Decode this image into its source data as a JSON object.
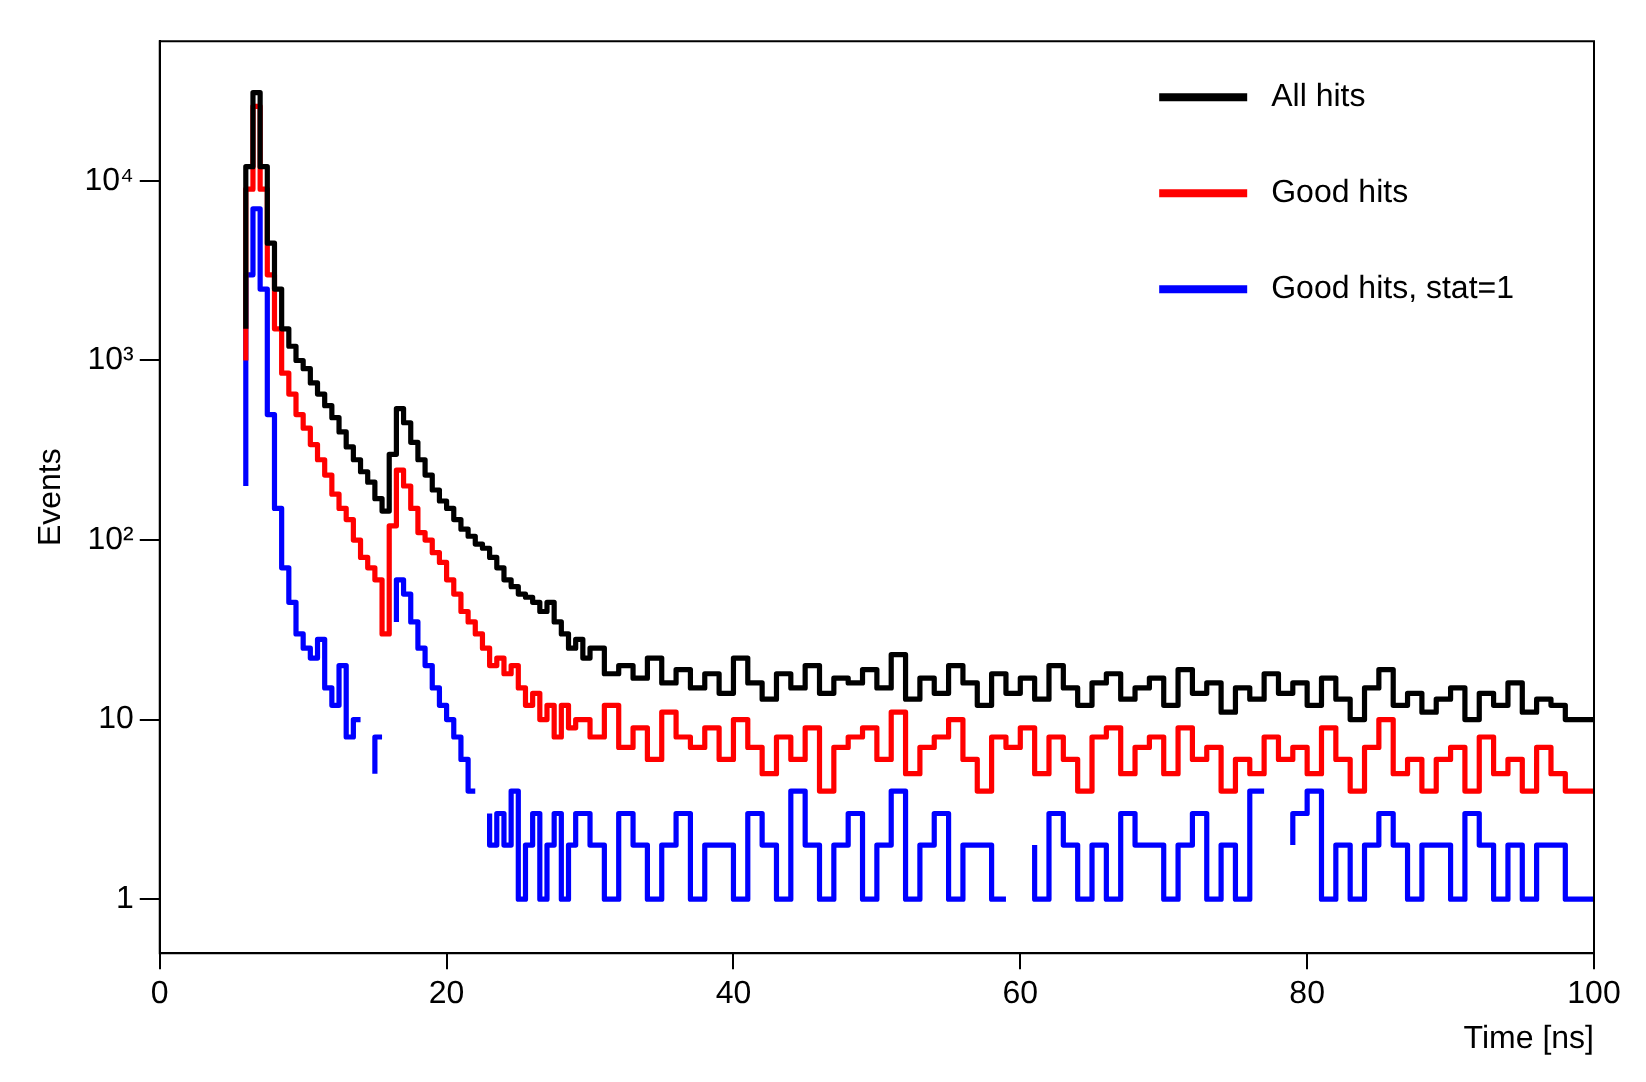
{
  "chart_data": {
    "type": "step",
    "xlabel": "Time [ns]",
    "ylabel": "Events",
    "log": "y",
    "legend": "top right",
    "line_style": "solid",
    "xlim": [
      0,
      100
    ],
    "xticks": [
      0,
      20,
      40,
      60,
      80,
      100
    ],
    "ylim": [
      0.5,
      60000
    ],
    "yticks": [
      1,
      10,
      {
        "value": 100,
        "label": "10²"
      },
      {
        "value": 1000,
        "label": "10³"
      },
      {
        "value": 10000,
        "label": "10⁴"
      }
    ],
    "x": [
      6,
      6.5,
      7,
      7.5,
      8,
      8.5,
      9,
      9.5,
      10,
      10.5,
      11,
      11.5,
      12,
      12.5,
      13,
      13.5,
      14,
      14.5,
      15,
      15.5,
      16,
      16.5,
      17,
      17.5,
      18,
      18.5,
      19,
      19.5,
      20,
      20.5,
      21,
      21.5,
      22,
      22.5,
      23,
      23.5,
      24,
      24.5,
      25,
      25.5,
      26,
      26.5,
      27,
      27.5,
      28,
      28.5,
      29,
      29.5,
      30,
      31,
      32,
      33,
      34,
      35,
      36,
      37,
      38,
      39,
      40,
      41,
      42,
      43,
      44,
      45,
      46,
      47,
      48,
      49,
      50,
      51,
      52,
      53,
      54,
      55,
      56,
      57,
      58,
      59,
      60,
      61,
      62,
      63,
      64,
      65,
      66,
      67,
      68,
      69,
      70,
      71,
      72,
      73,
      74,
      75,
      76,
      77,
      78,
      79,
      80,
      81,
      82,
      83,
      84,
      85,
      86,
      87,
      88,
      89,
      90,
      91,
      92,
      93,
      94,
      95,
      96,
      97,
      98,
      99,
      100
    ],
    "series": [
      {
        "name": "All hits",
        "color": "#000000",
        "values": [
          1500,
          12000,
          31000,
          12000,
          4500,
          2500,
          1500,
          1200,
          1000,
          900,
          750,
          650,
          560,
          480,
          400,
          330,
          280,
          240,
          210,
          170,
          145,
          300,
          540,
          450,
          350,
          280,
          230,
          190,
          165,
          150,
          130,
          115,
          105,
          95,
          90,
          80,
          70,
          60,
          55,
          50,
          48,
          45,
          40,
          45,
          35,
          30,
          25,
          28,
          22,
          25,
          18,
          20,
          17,
          22,
          16,
          19,
          15,
          18,
          14,
          22,
          16,
          13,
          18,
          15,
          20,
          14,
          17,
          16,
          19,
          15,
          23,
          13,
          17,
          14,
          20,
          16,
          12,
          18,
          14,
          17,
          13,
          20,
          15,
          12,
          16,
          18,
          13,
          15,
          17,
          12,
          19,
          14,
          16,
          11,
          15,
          13,
          18,
          14,
          16,
          12,
          17,
          13,
          10,
          15,
          19,
          12,
          14,
          11,
          13,
          15,
          10,
          14,
          12,
          16,
          11,
          13,
          12,
          10,
          10
        ]
      },
      {
        "name": "Good hits",
        "color": "#ff0000",
        "values": [
          1000,
          9000,
          26000,
          9000,
          3000,
          1500,
          850,
          650,
          500,
          420,
          340,
          280,
          230,
          180,
          150,
          130,
          100,
          80,
          70,
          60,
          30,
          120,
          245,
          200,
          150,
          110,
          100,
          85,
          75,
          60,
          50,
          40,
          35,
          30,
          25,
          20,
          22,
          18,
          20,
          15,
          12,
          14,
          10,
          12,
          8,
          12,
          9,
          10,
          10,
          8,
          12,
          7,
          9,
          6,
          11,
          8,
          7,
          9,
          6,
          10,
          7,
          5,
          8,
          6,
          9,
          4,
          7,
          8,
          9,
          6,
          11,
          5,
          7,
          8,
          10,
          6,
          4,
          8,
          7,
          9,
          5,
          8,
          6,
          4,
          8,
          9,
          5,
          7,
          8,
          5,
          9,
          6,
          7,
          4,
          6,
          5,
          8,
          6,
          7,
          5,
          9,
          6,
          4,
          7,
          10,
          5,
          6,
          4,
          6,
          7,
          4,
          8,
          5,
          6,
          4,
          7,
          5,
          4,
          4
        ]
      },
      {
        "name": "Good hits, stat=1",
        "color": "#0000ff",
        "values": [
          200,
          3000,
          7000,
          2500,
          500,
          150,
          70,
          45,
          30,
          25,
          22,
          28,
          15,
          12,
          20,
          8,
          10,
          null,
          5,
          8,
          null,
          35,
          60,
          50,
          35,
          25,
          20,
          15,
          12,
          10,
          8,
          6,
          4,
          null,
          3,
          2,
          3,
          2,
          4,
          1,
          2,
          3,
          1,
          2,
          3,
          1,
          2,
          3,
          3,
          2,
          1,
          3,
          2,
          1,
          2,
          3,
          1,
          2,
          2,
          1,
          3,
          2,
          1,
          4,
          2,
          1,
          2,
          3,
          1,
          2,
          4,
          1,
          2,
          3,
          1,
          2,
          2,
          1,
          null,
          2,
          1,
          3,
          2,
          1,
          2,
          1,
          3,
          2,
          2,
          1,
          2,
          3,
          1,
          2,
          1,
          4,
          null,
          2,
          3,
          4,
          1,
          2,
          1,
          2,
          3,
          2,
          1,
          2,
          2,
          1,
          3,
          2,
          1,
          2,
          1,
          2,
          2,
          1,
          1
        ]
      }
    ]
  }
}
